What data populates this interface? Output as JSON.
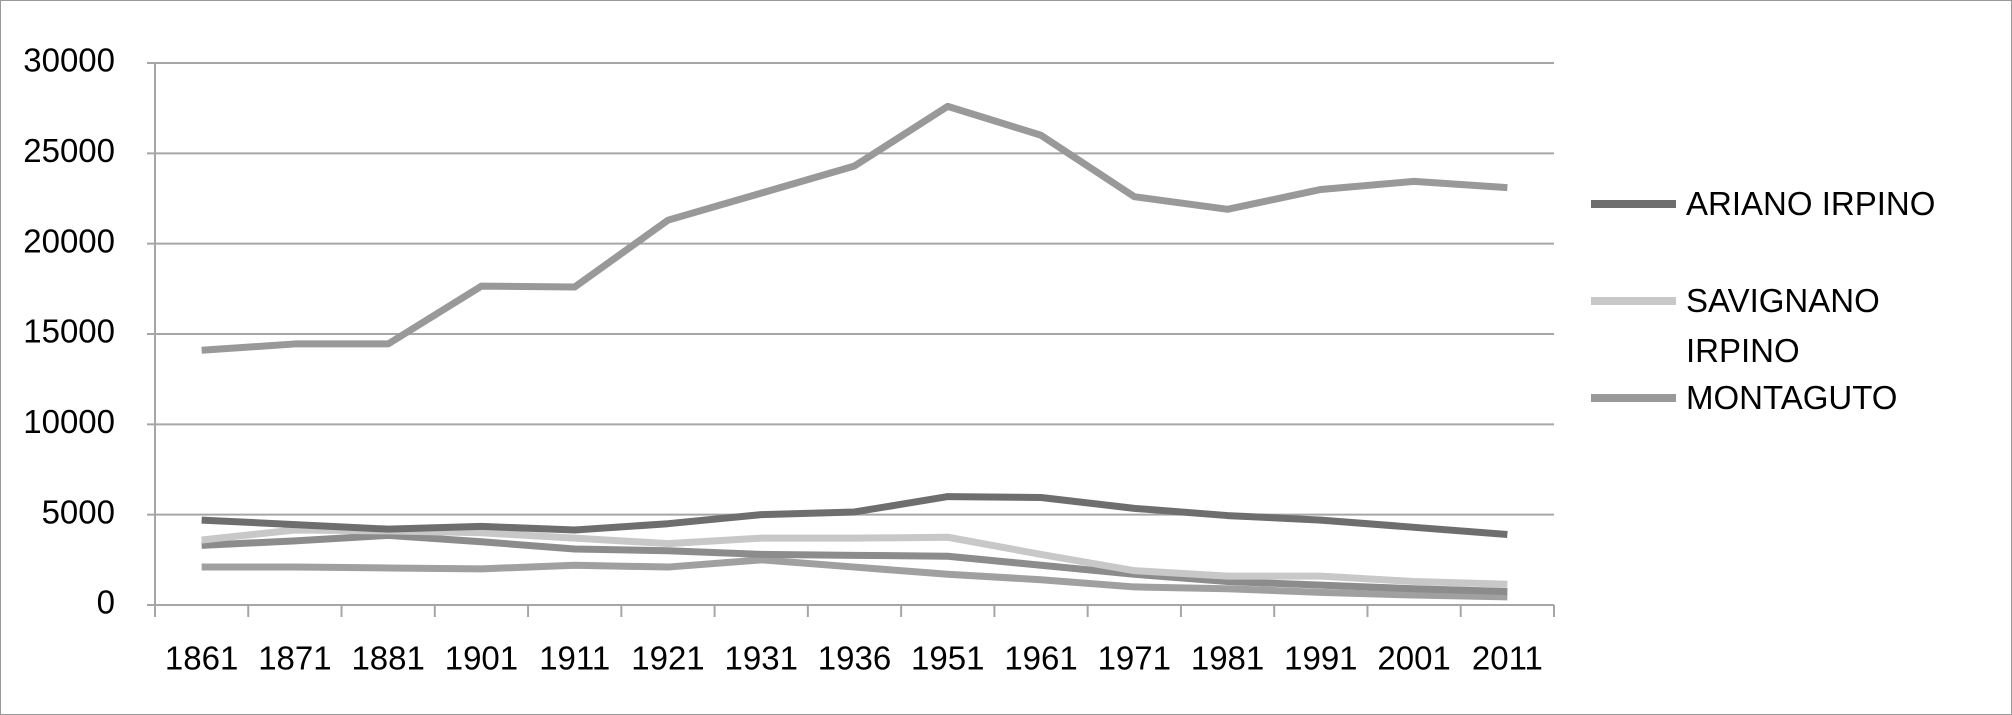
{
  "chart_data": {
    "type": "line",
    "categories": [
      "1861",
      "1871",
      "1881",
      "1901",
      "1911",
      "1921",
      "1931",
      "1936",
      "1951",
      "1961",
      "1971",
      "1981",
      "1991",
      "2001",
      "2011"
    ],
    "series": [
      {
        "name": "ARIANO IRPINO",
        "color": "#6e6e6e",
        "values": [
          4700,
          4450,
          4200,
          4350,
          4150,
          4500,
          5000,
          5150,
          6000,
          5950,
          5350,
          4950,
          4700,
          4300,
          3900
        ]
      },
      {
        "name": "SAVIGNANO IRPINO",
        "color": "#c8c8c8",
        "values": [
          3600,
          4150,
          4100,
          4000,
          3700,
          3400,
          3700,
          3700,
          3750,
          2800,
          1900,
          1600,
          1600,
          1300,
          1150
        ]
      },
      {
        "name": "MONTAGUTO",
        "color": "#999999",
        "values": [
          14100,
          14450,
          14450,
          17650,
          17600,
          21300,
          22800,
          24300,
          27600,
          26000,
          22600,
          21900,
          23000,
          23450,
          23100
        ]
      },
      {
        "color": "#8c8c8c",
        "values": [
          3300,
          3550,
          3850,
          3500,
          3100,
          3000,
          2800,
          2750,
          2700,
          2200,
          1700,
          1300,
          1100,
          900,
          750
        ]
      },
      {
        "color": "#a0a0a0",
        "values": [
          2100,
          2100,
          2050,
          2000,
          2200,
          2100,
          2500,
          2100,
          1700,
          1400,
          1000,
          900,
          700,
          550,
          450
        ]
      }
    ],
    "ylim": [
      0,
      30000
    ],
    "yticks": [
      0,
      5000,
      10000,
      15000,
      20000,
      25000,
      30000
    ],
    "grid": true
  }
}
